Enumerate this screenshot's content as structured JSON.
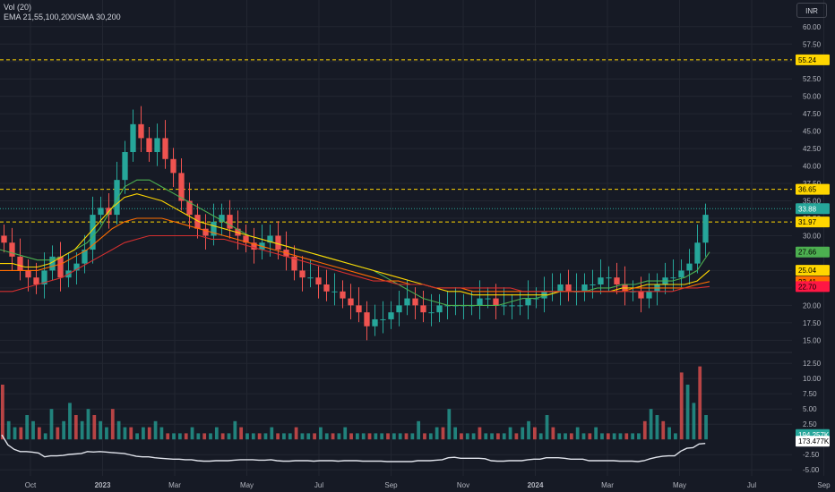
{
  "legend": {
    "volume_label": "Vol (20)",
    "ma_label": "EMA 21,55,100,200/SMA 30,200"
  },
  "currency_button": "INR",
  "colors": {
    "up": "#26a69a",
    "down": "#ef5350",
    "grid": "#222631",
    "axis_text": "#b2b5be",
    "bg": "#161a25"
  },
  "chart_data": [
    {
      "type": "candlestick",
      "y_ticks": [
        "15.00",
        "17.50",
        "20.00",
        "22.50",
        "25.00",
        "27.50",
        "30.00",
        "32.50",
        "35.00",
        "37.50",
        "40.00",
        "42.50",
        "45.00",
        "47.50",
        "50.00",
        "52.50",
        "55.00",
        "57.50",
        "60.00"
      ],
      "ylim": [
        13.5,
        61
      ],
      "x_ticks": [
        "Oct",
        "2023",
        "Mar",
        "May",
        "Jul",
        "Sep",
        "Nov",
        "2024",
        "Mar",
        "May",
        "Jul",
        "Sep"
      ],
      "candles_close": [
        29,
        27,
        25,
        24,
        23,
        25,
        27,
        24,
        25,
        26,
        28,
        33,
        34,
        33,
        38,
        42,
        46,
        44,
        42,
        44,
        41,
        39,
        35,
        33,
        31,
        30,
        32,
        33,
        31,
        30,
        29,
        28,
        29,
        30,
        28,
        27,
        25,
        24,
        24,
        23,
        22,
        22,
        21,
        20,
        19,
        17,
        18,
        18,
        19,
        20,
        21,
        20,
        19,
        19,
        20,
        20,
        20,
        20,
        20,
        21,
        21,
        20,
        20,
        20,
        20,
        21,
        21,
        22,
        22,
        23,
        22,
        22,
        23,
        23,
        24,
        24,
        23,
        22,
        22,
        21,
        22,
        23,
        24,
        24,
        25,
        26,
        29,
        33
      ],
      "price_lines": [
        {
          "label": "55.24",
          "value": 55.24,
          "color": "#ffd600"
        },
        {
          "label": "36.65",
          "value": 36.65,
          "color": "#ffd600"
        },
        {
          "label": "31.97",
          "value": 31.97,
          "color": "#ffd600"
        }
      ],
      "price_badges": [
        {
          "label": "33.88",
          "value": 33.88,
          "color": "#26a69a",
          "text_color": "#ffffff"
        },
        {
          "label": "27.66",
          "value": 27.66,
          "color": "#4caf50",
          "text_color": "#000000"
        },
        {
          "label": "25.04",
          "value": 25.04,
          "color": "#ffd600",
          "text_color": "#000000"
        },
        {
          "label": "23.41",
          "value": 23.41,
          "color": "#ff6d00",
          "text_color": "#000000"
        },
        {
          "label": "22.70",
          "value": 22.7,
          "color": "#ff1744",
          "text_color": "#000000"
        }
      ],
      "moving_averages": [
        {
          "period": "EMA 21",
          "color": "#4caf50",
          "values": [
            28,
            27.5,
            27,
            26.5,
            26.5,
            27,
            28,
            29,
            31,
            34,
            37,
            38,
            38,
            37,
            36,
            35,
            34,
            33,
            32,
            31,
            30,
            29.5,
            29,
            28.5,
            28,
            27.5,
            27,
            26.5,
            26,
            25.5,
            25,
            24,
            23,
            22,
            21,
            20.5,
            20,
            20,
            20,
            20,
            20,
            20.5,
            21,
            21,
            21.5,
            22,
            22,
            22,
            22.5,
            22.5,
            23,
            23,
            23.5,
            23.5,
            23.5,
            24,
            25,
            27.66
          ]
        },
        {
          "period": "EMA 55",
          "color": "#ffd600",
          "values": [
            26,
            26,
            25.5,
            25.5,
            26,
            27,
            28,
            30,
            32,
            34,
            35.5,
            36,
            35.5,
            35,
            34,
            33,
            32,
            31.5,
            31,
            30.5,
            30,
            29.5,
            29,
            28.5,
            28,
            27.5,
            27,
            26.5,
            26,
            25.5,
            25,
            24.5,
            24,
            23.5,
            23,
            22.5,
            22,
            22,
            21.5,
            21.5,
            21.5,
            21.5,
            21.5,
            21.5,
            21.5,
            22,
            22,
            22,
            22,
            22,
            22.5,
            22.5,
            23,
            23,
            23,
            23,
            23.5,
            25.04
          ]
        },
        {
          "period": "EMA 100",
          "color": "#ff6d00",
          "values": [
            25,
            25,
            25,
            25,
            25.5,
            26,
            27,
            28,
            29.5,
            31,
            32,
            32.5,
            32.5,
            32.5,
            32,
            31.5,
            31,
            30.5,
            30,
            29.5,
            29,
            28.5,
            28,
            27.5,
            27,
            26.5,
            26,
            25.5,
            25,
            24.5,
            24,
            23.5,
            23.5,
            23,
            23,
            22.5,
            22.5,
            22.5,
            22,
            22,
            22,
            22,
            22,
            22,
            22,
            22,
            22,
            22,
            22,
            22,
            22,
            22.5,
            22.5,
            22.5,
            22.5,
            22.5,
            23,
            23.41
          ]
        },
        {
          "period": "EMA 200",
          "color": "#d32f2f",
          "values": [
            22,
            22,
            22.5,
            23,
            23.5,
            24,
            25,
            26,
            27,
            28,
            29,
            29.5,
            30,
            30,
            30,
            30,
            30,
            29.5,
            29.5,
            29,
            28.5,
            28,
            27.5,
            27,
            26.5,
            26,
            25.5,
            25,
            24.5,
            24,
            23.5,
            23.5,
            23,
            23,
            23,
            22.5,
            22.5,
            22.5,
            22.5,
            22.5,
            22.5,
            22.5,
            22,
            22,
            22,
            22,
            22,
            22,
            22,
            22,
            22,
            22,
            22,
            22,
            22,
            22.5,
            22.5,
            22.7
          ]
        }
      ]
    },
    {
      "type": "bar",
      "title": "Vol (20)",
      "y_ticks": [
        "-5.00",
        "-2.50",
        "2.50",
        "5.00",
        "7.50",
        "10.00",
        "12.50"
      ],
      "ylim": [
        -6,
        14
      ],
      "badges": [
        {
          "label": "194.257K",
          "color": "#26a69a",
          "text_color": "#ffffff",
          "value": 0.8
        },
        {
          "label": "173.477K",
          "color": "#ffffff",
          "text_color": "#000000",
          "value": -0.3
        }
      ],
      "values": [
        9,
        3,
        2,
        2,
        4,
        3,
        2,
        1,
        5,
        2,
        3,
        6,
        4,
        3,
        5,
        4,
        3,
        2,
        5,
        3,
        2,
        2,
        1,
        2,
        2,
        3,
        2,
        1,
        1,
        1,
        1,
        2,
        1,
        1,
        1,
        2,
        1,
        1,
        3,
        2,
        1,
        1,
        1,
        1,
        2,
        1,
        1,
        1,
        2,
        1,
        1,
        1,
        2,
        1,
        1,
        1,
        2,
        1,
        1,
        1,
        1,
        1,
        1,
        1,
        1,
        1,
        1,
        1,
        3,
        1,
        1,
        2,
        2,
        5,
        2,
        1,
        1,
        1,
        2,
        1,
        1,
        1,
        1,
        2,
        1,
        2,
        3,
        2,
        1,
        4,
        2,
        1,
        1,
        1,
        2,
        1,
        1,
        2,
        1,
        1,
        1,
        1,
        1,
        1,
        1,
        3,
        5,
        4,
        3,
        2,
        1,
        11,
        9,
        6,
        12,
        4
      ]
    }
  ]
}
